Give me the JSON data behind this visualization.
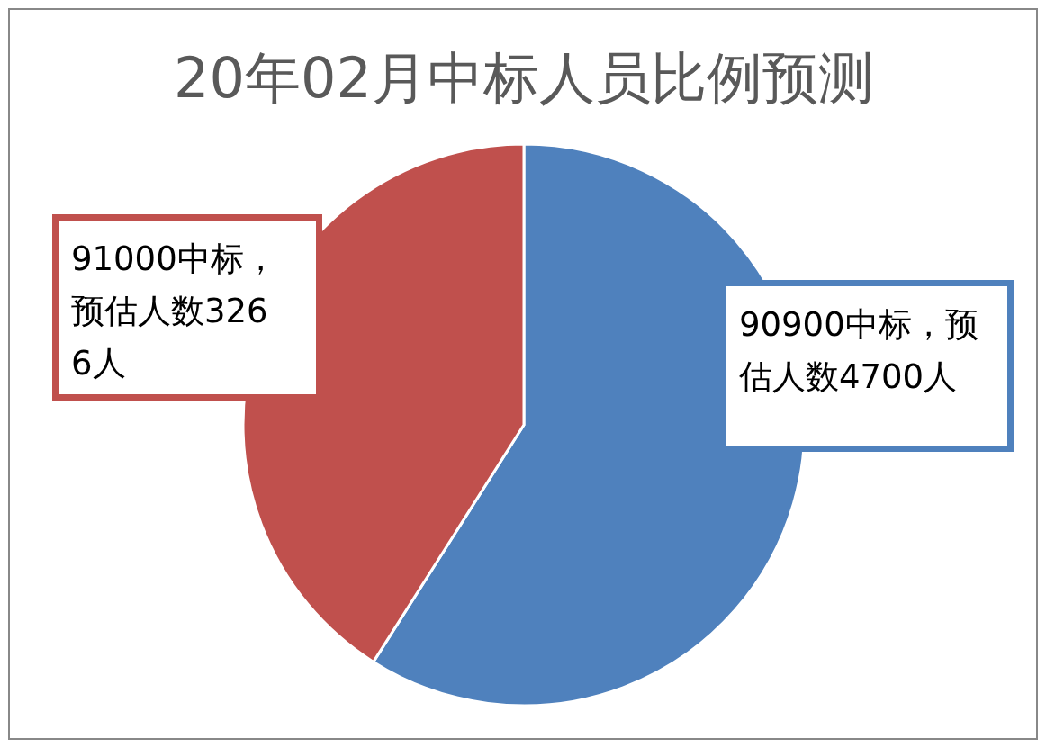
{
  "chart_data": {
    "type": "pie",
    "title": "20年02月中标人员比例预测",
    "categories": [
      "90900中标，预估人数",
      "91000中标，预估人数"
    ],
    "values": [
      4700,
      3266
    ],
    "value_labels": [
      "4700人",
      "3266人"
    ],
    "colors": [
      "#4f81bd",
      "#c0504d"
    ]
  }
}
